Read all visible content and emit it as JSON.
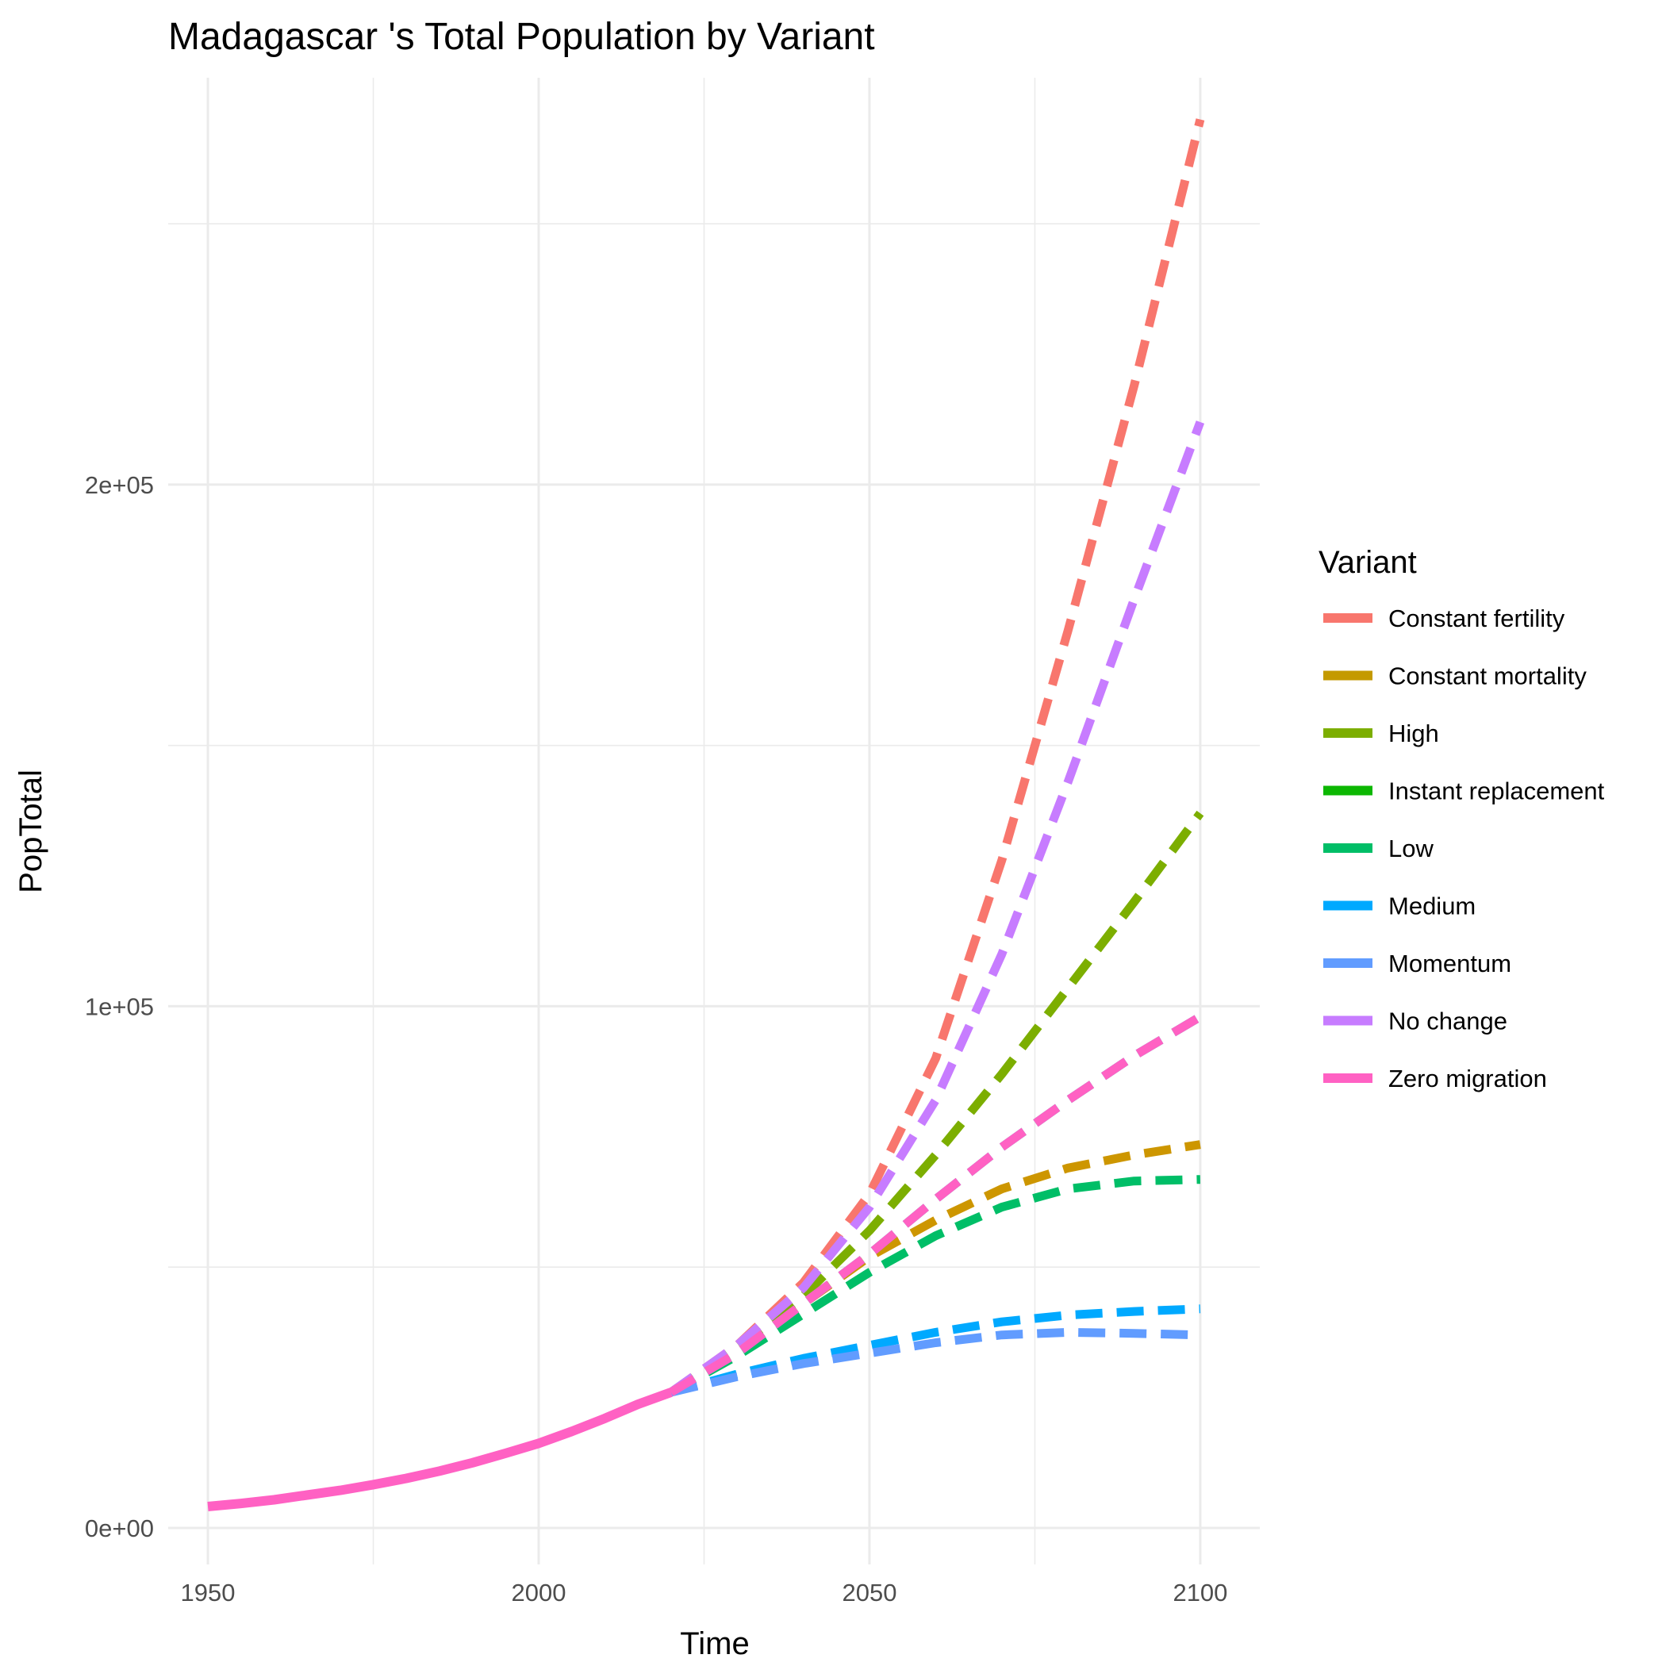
{
  "chart_data": {
    "type": "line",
    "title": "Madagascar 's Total Population by Variant",
    "xlabel": "Time",
    "ylabel": "PopTotal",
    "xlim": [
      1944,
      2109
    ],
    "ylim": [
      -7000,
      278000
    ],
    "x_ticks": [
      1950,
      2000,
      2050,
      2100
    ],
    "x_tick_labels": [
      "1950",
      "2000",
      "2050",
      "2100"
    ],
    "y_ticks": [
      0,
      100000,
      200000
    ],
    "y_tick_labels": [
      "0e+00",
      "1e+05",
      "2e+05"
    ],
    "grid": true,
    "legend": {
      "title": "Variant",
      "position": "right"
    },
    "history": {
      "x": [
        1950,
        1955,
        1960,
        1965,
        1970,
        1975,
        1980,
        1985,
        1990,
        1995,
        2000,
        2005,
        2010,
        2015,
        2020
      ],
      "y": [
        4100,
        4700,
        5400,
        6300,
        7200,
        8300,
        9500,
        10900,
        12500,
        14300,
        16200,
        18500,
        21000,
        23700,
        26000
      ]
    },
    "projection_x": [
      2020,
      2030,
      2040,
      2050,
      2060,
      2070,
      2080,
      2090,
      2100
    ],
    "series": [
      {
        "name": "Constant fertility",
        "color": "#F8766D",
        "values": [
          26000,
          35000,
          47000,
          64000,
          90000,
          128000,
          172000,
          219000,
          270000
        ]
      },
      {
        "name": "Constant mortality",
        "color": "#CD9600",
        "values": [
          26000,
          34000,
          43000,
          52000,
          59000,
          65000,
          69000,
          71500,
          73500
        ]
      },
      {
        "name": "High",
        "color": "#7CAE00",
        "values": [
          26000,
          34500,
          44500,
          57000,
          71500,
          87000,
          103500,
          120000,
          137000
        ]
      },
      {
        "name": "Instant replacement",
        "color": "#00A9FF",
        "values": [
          26000,
          29500,
          32500,
          35000,
          37500,
          39500,
          40800,
          41500,
          42000
        ]
      },
      {
        "name": "Low",
        "color": "#00BE67",
        "values": [
          26000,
          33000,
          41000,
          49000,
          56000,
          61500,
          65000,
          66500,
          66800
        ]
      },
      {
        "name": "Medium",
        "color": "#00BFC4",
        "values": [
          26000,
          33500,
          43000,
          52500,
          63000,
          73000,
          82000,
          90500,
          98000
        ]
      },
      {
        "name": "Momentum",
        "color": "#619CFF",
        "values": [
          26000,
          29000,
          31500,
          33500,
          35500,
          37000,
          37500,
          37300,
          37000
        ]
      },
      {
        "name": "No change",
        "color": "#C77CFF",
        "values": [
          26000,
          35000,
          46000,
          61500,
          82000,
          110000,
          143000,
          178000,
          212000
        ]
      },
      {
        "name": "Zero migration",
        "color": "#FF61C3",
        "values": [
          26000,
          33500,
          43000,
          52500,
          63000,
          73000,
          82000,
          90500,
          98000
        ]
      }
    ],
    "legend_entries": [
      {
        "label": "Constant fertility",
        "color": "#F8766D"
      },
      {
        "label": "Constant mortality",
        "color": "#C49A00"
      },
      {
        "label": "High",
        "color": "#7CAE00"
      },
      {
        "label": "Instant replacement",
        "color": "#0CB702"
      },
      {
        "label": "Low",
        "color": "#00BE67"
      },
      {
        "label": "Medium",
        "color": "#00A9FF"
      },
      {
        "label": "Momentum",
        "color": "#619CFF"
      },
      {
        "label": "No change",
        "color": "#C77CFF"
      },
      {
        "label": "Zero migration",
        "color": "#FF61C3"
      }
    ]
  }
}
